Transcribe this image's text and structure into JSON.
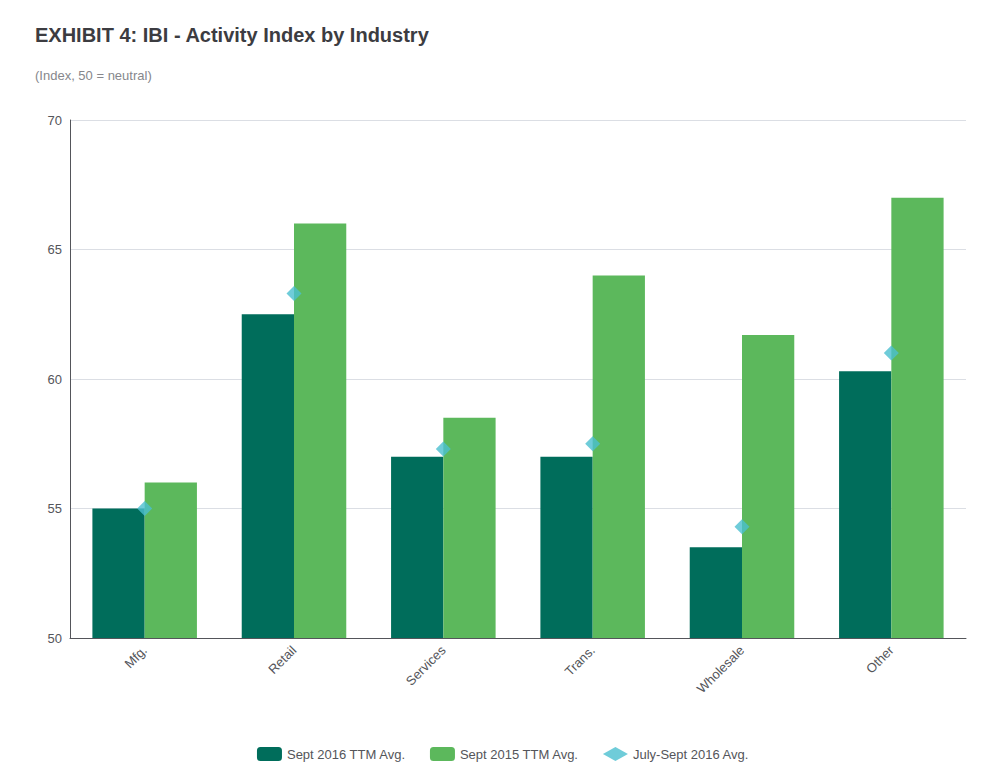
{
  "chart_data": {
    "type": "bar",
    "title": "EXHIBIT 4: IBI - Activity Index by Industry",
    "subtitle": "(Index, 50 = neutral)",
    "categories": [
      "Mfg.",
      "Retail",
      "Services",
      "Trans.",
      "Wholesale",
      "Other"
    ],
    "series": [
      {
        "name": "Sept 2016 TTM Avg.",
        "type": "bar",
        "color": "#006d5b",
        "values": [
          55.0,
          62.5,
          57.0,
          57.0,
          53.5,
          60.3
        ]
      },
      {
        "name": "Sept 2015 TTM Avg.",
        "type": "bar",
        "color": "#5cb85c",
        "values": [
          56.0,
          66.0,
          58.5,
          64.0,
          61.7,
          67.0
        ]
      },
      {
        "name": "July-Sept 2016 Avg.",
        "type": "scatter",
        "marker": "diamond",
        "color": "#4bbfcf",
        "values": [
          55.0,
          63.3,
          57.3,
          57.5,
          54.3,
          61.0
        ]
      }
    ],
    "ylim": [
      50,
      70
    ],
    "yticks": [
      50,
      55,
      60,
      65,
      70
    ],
    "grid": true,
    "legend": "bottom"
  }
}
